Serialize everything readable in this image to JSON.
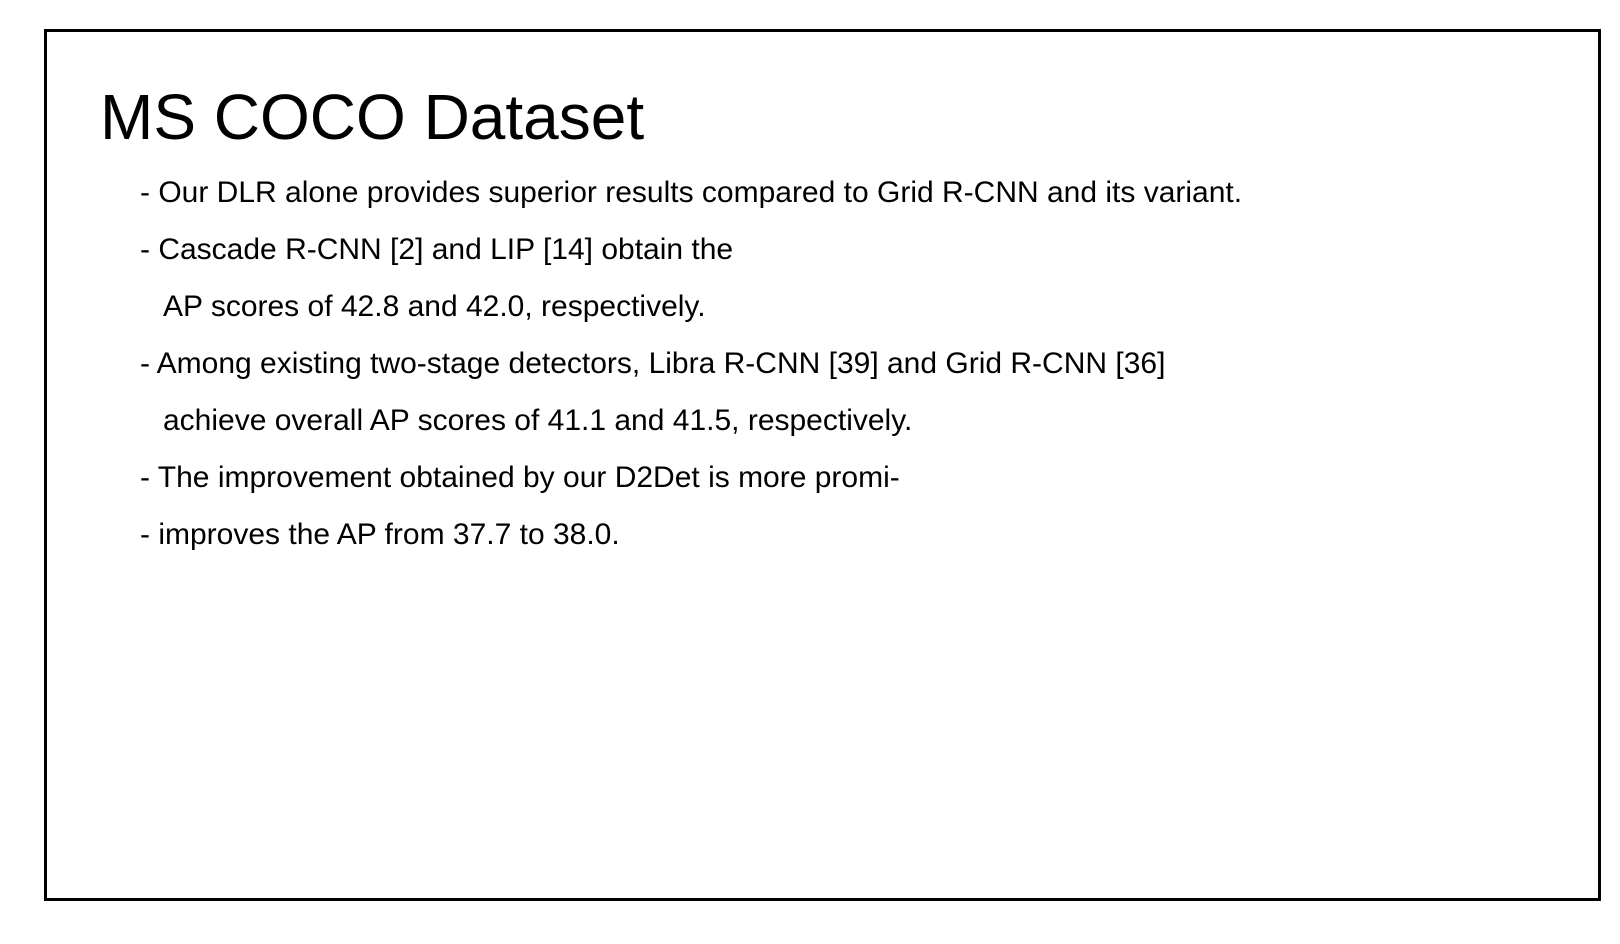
{
  "slide": {
    "title": "MS COCO Dataset",
    "lines": [
      "- Our DLR alone provides superior results compared to Grid R-CNN and its variant.",
      "- Cascade R-CNN [2] and LIP [14] obtain the",
      "AP scores of 42.8 and 42.0, respectively.",
      "- Among existing two-stage detectors, Libra R-CNN [39] and Grid R-CNN [36]",
      "achieve overall AP scores of 41.1 and 41.5, respectively.",
      "- The improvement obtained by our D2Det is more promi-",
      "- improves the AP from 37.7 to 38.0."
    ]
  }
}
